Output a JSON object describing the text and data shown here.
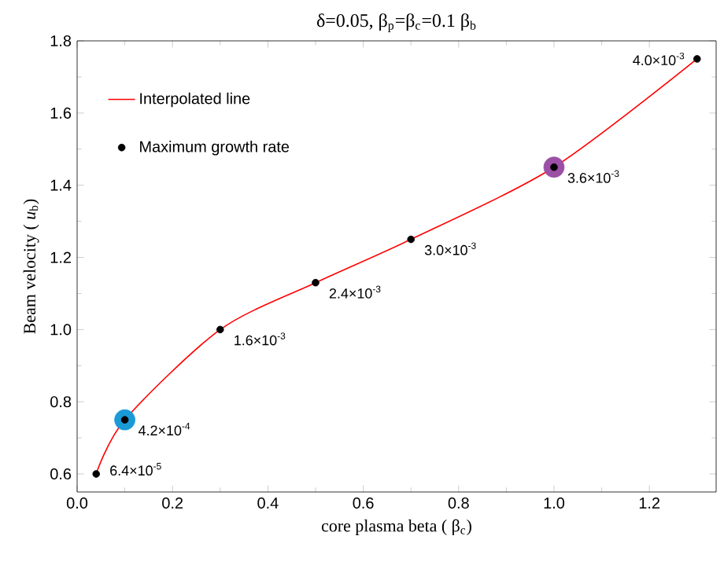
{
  "chart_data": {
    "type": "scatter",
    "title": "δ=0.05, β$_{p}$=β$_{c}$=0.1 β$_{b}$",
    "xlabel": "core plasma beta ( β$_{c}$)",
    "ylabel": "Beam velocity ( *u*$_{b}$)",
    "xlim": [
      0,
      1.34
    ],
    "ylim": [
      0.55,
      1.8
    ],
    "xticks": [
      {
        "value": 0,
        "label": "0.0"
      },
      0.2,
      0.4,
      0.6,
      0.8,
      {
        "value": 1,
        "label": "1.0"
      },
      1.2
    ],
    "yticks": [
      0.6,
      0.8,
      {
        "value": 1,
        "label": "1.0"
      },
      1.2,
      1.4,
      1.6,
      1.8
    ],
    "legend": "top left",
    "grid": false,
    "series": [
      {
        "name": "Interpolated line",
        "type": "line",
        "color": "#ff0000",
        "line_style": "solid",
        "marker": "none",
        "x": [
          0.04,
          0.1,
          0.3,
          0.5,
          0.7,
          1.0,
          1.3
        ],
        "values": [
          0.6,
          0.75,
          1.0,
          1.13,
          1.25,
          1.45,
          1.75
        ]
      },
      {
        "type": "scatter",
        "marker": "circle",
        "colors": [
          "#1a9ad6",
          "#9b4fa5"
        ],
        "x": [
          0.1,
          1.0
        ],
        "values": [
          0.75,
          1.45
        ]
      },
      {
        "name": "Maximum growth rate",
        "type": "scatter",
        "marker": "circle",
        "color": "#000000",
        "x": [
          0.04,
          0.1,
          0.3,
          0.5,
          0.7,
          1.0,
          1.3
        ],
        "values": [
          0.6,
          0.75,
          1.0,
          1.13,
          1.25,
          1.45,
          1.75
        ]
      }
    ],
    "annotations": [
      {
        "text": "6.4×10$^{-5}$",
        "x": 0.04,
        "y": 0.6
      },
      {
        "text": "4.2×10$^{-4}$",
        "x": 0.1,
        "y": 0.75
      },
      {
        "text": "1.6×10$^{-3}$",
        "x": 0.3,
        "y": 1.0
      },
      {
        "text": "2.4×10$^{-3}$",
        "x": 0.5,
        "y": 1.13
      },
      {
        "text": "3.0×10$^{-3}$",
        "x": 0.7,
        "y": 1.25
      },
      {
        "text": "3.6×10$^{-3}$",
        "x": 1.0,
        "y": 1.45
      },
      {
        "text": "4.0×10$^{-3}$",
        "x": 1.3,
        "y": 1.75
      }
    ]
  }
}
